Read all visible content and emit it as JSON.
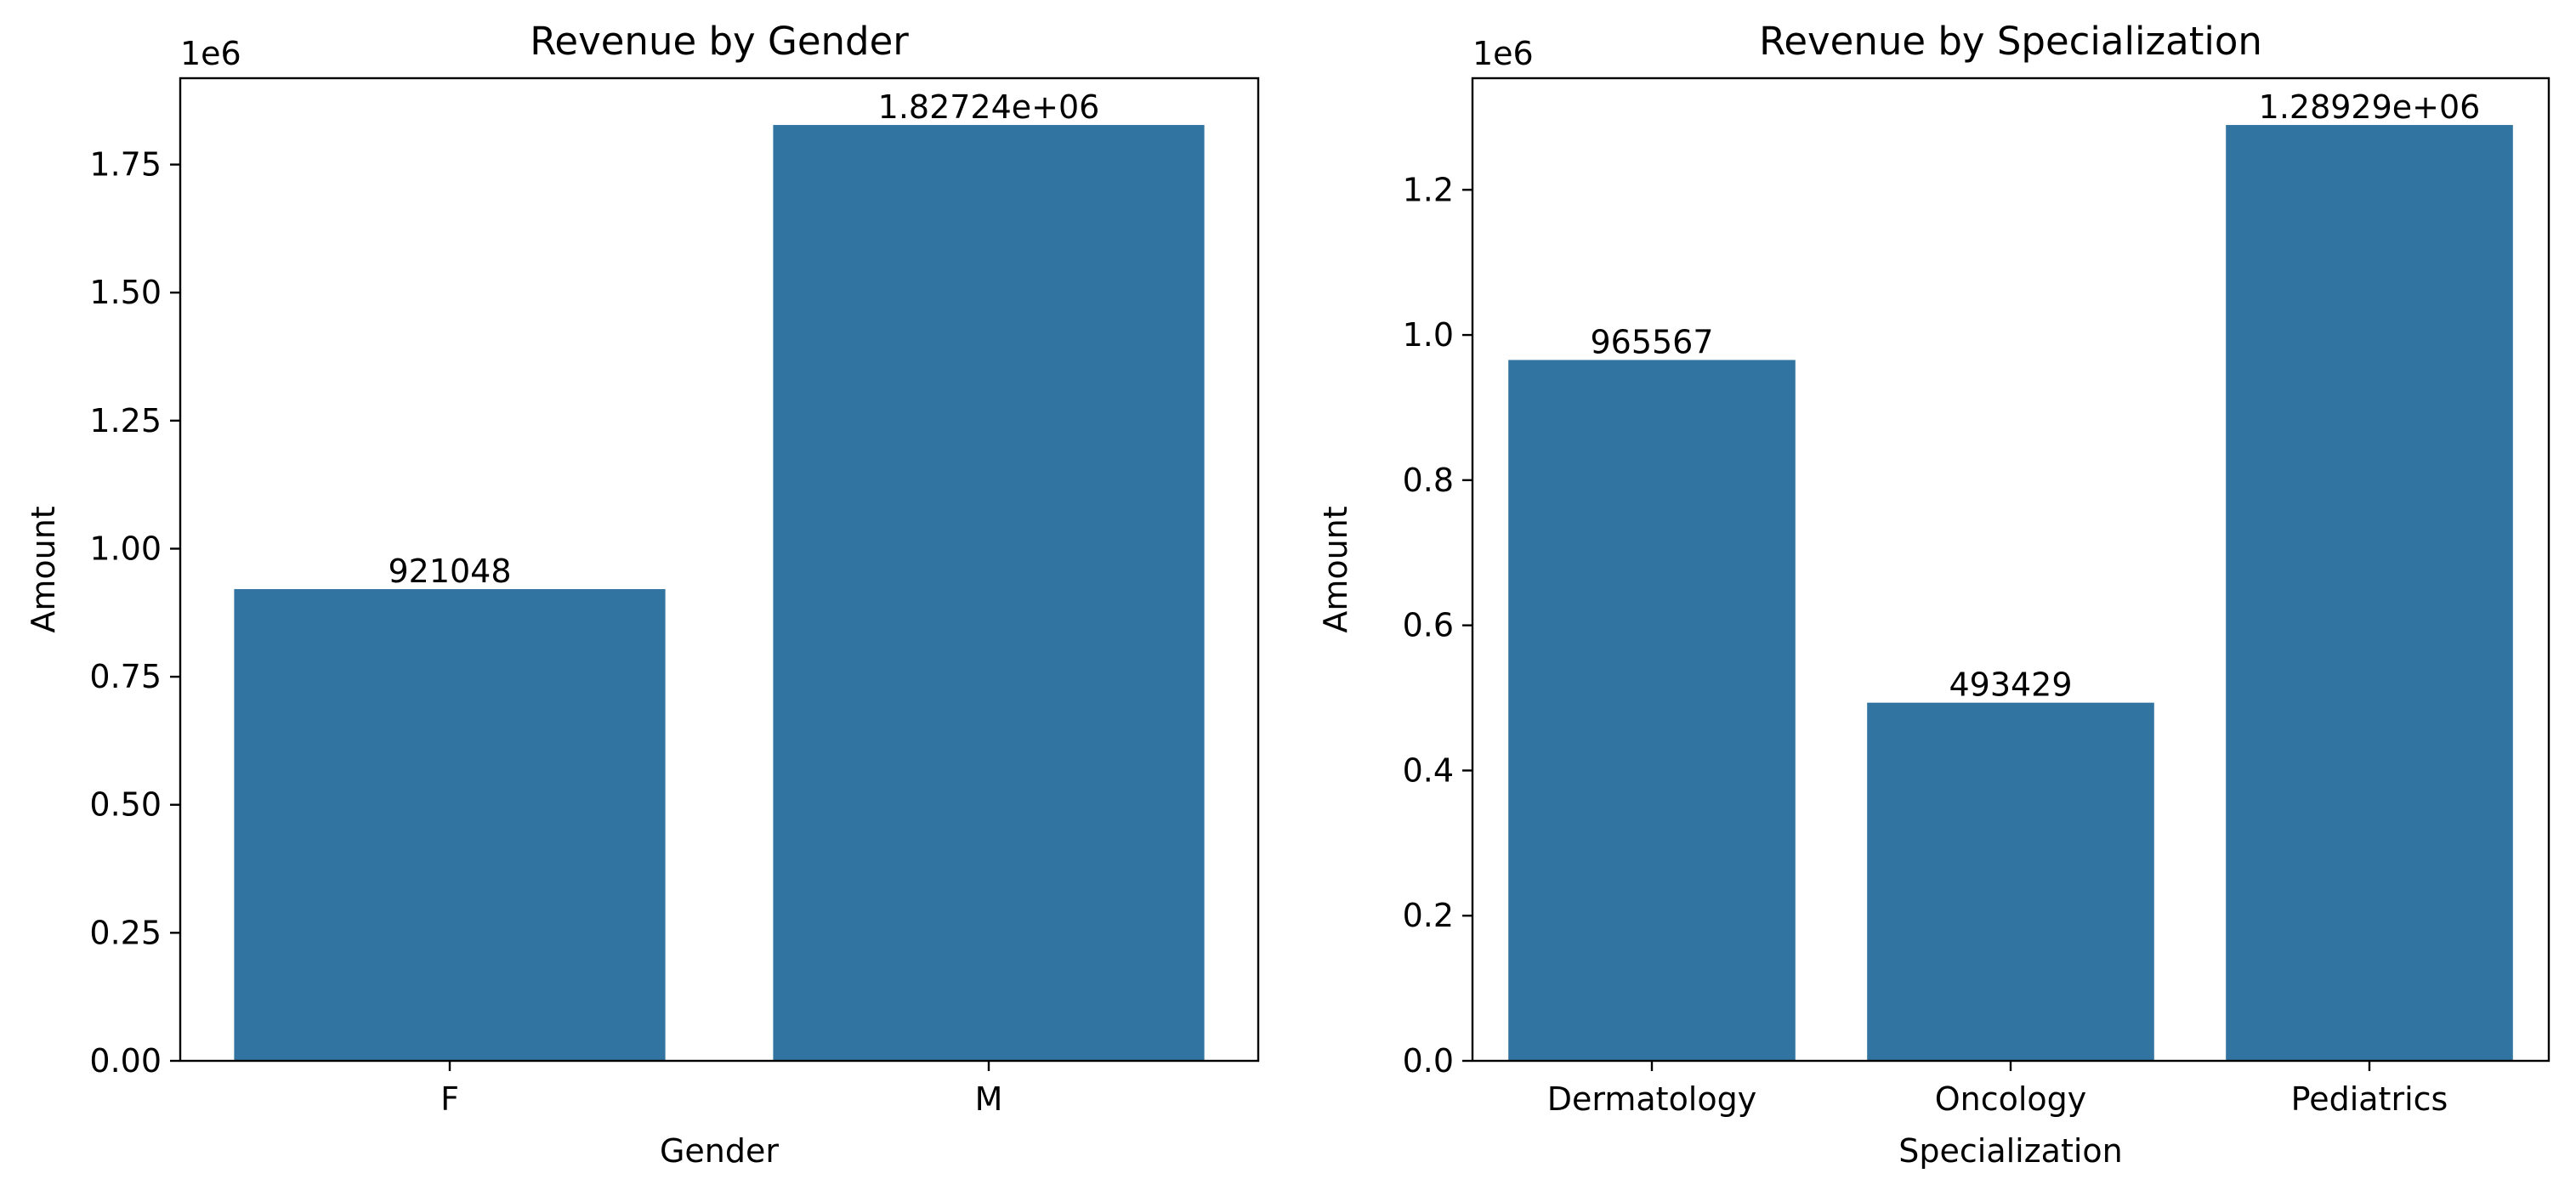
{
  "chart_data": [
    {
      "type": "bar",
      "title": "Revenue by Gender",
      "xlabel": "Gender",
      "ylabel": "Amount",
      "categories": [
        "F",
        "M"
      ],
      "values": [
        921048,
        1827240
      ],
      "bar_labels": [
        "921048",
        "1.82724e+06"
      ],
      "ylim": [
        0,
        1918602
      ],
      "yticks": [
        0,
        250000,
        500000,
        750000,
        1000000,
        1250000,
        1500000,
        1750000
      ],
      "ytick_labels": [
        "0.00",
        "0.25",
        "0.50",
        "0.75",
        "1.00",
        "1.25",
        "1.50",
        "1.75"
      ],
      "offset_label": "1e6",
      "grid": false,
      "bar_color": "#3274a1"
    },
    {
      "type": "bar",
      "title": "Revenue by Specialization",
      "xlabel": "Specialization",
      "ylabel": "Amount",
      "categories": [
        "Dermatology",
        "Oncology",
        "Pediatrics"
      ],
      "values": [
        965567,
        493429,
        1289290
      ],
      "bar_labels": [
        "965567",
        "493429",
        "1.28929e+06"
      ],
      "ylim": [
        0,
        1353754
      ],
      "yticks": [
        0,
        200000,
        400000,
        600000,
        800000,
        1000000,
        1200000
      ],
      "ytick_labels": [
        "0.0",
        "0.2",
        "0.4",
        "0.6",
        "0.8",
        "1.0",
        "1.2"
      ],
      "offset_label": "1e6",
      "grid": false,
      "bar_color": "#3274a1"
    }
  ]
}
